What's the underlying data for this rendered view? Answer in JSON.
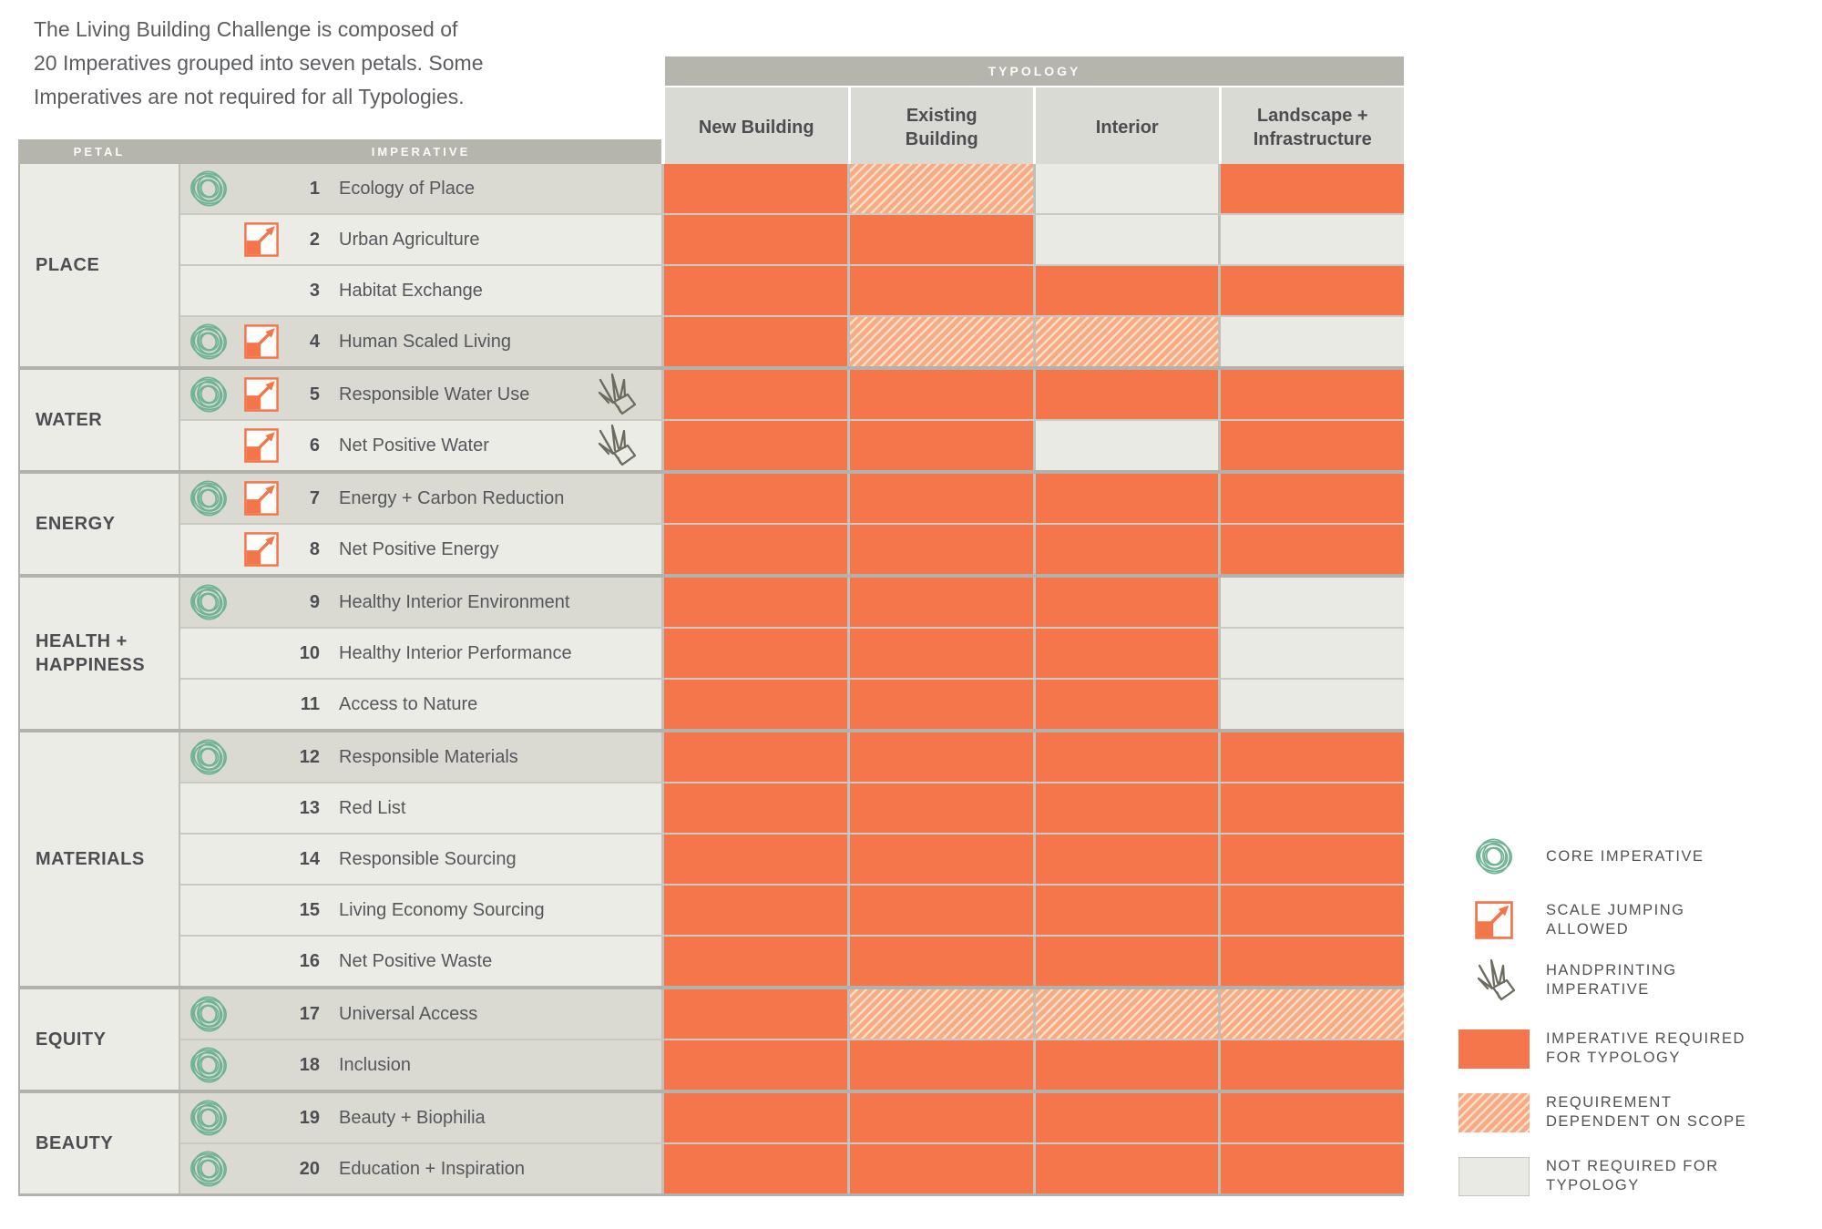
{
  "intro": "The Living Building Challenge is composed of\n20 Imperatives grouped into seven petals. Some\nImperatives are not required for all Typologies.",
  "table": {
    "petal_header": "PETAL",
    "imperative_header": "IMPERATIVE",
    "typology_header": "TYPOLOGY"
  },
  "chart_data": {
    "type": "table",
    "title": "Living Building Challenge Imperatives by Typology",
    "columns": [
      "New Building",
      "Existing\nBuilding",
      "Interior",
      "Landscape +\nInfrastructure"
    ],
    "cell_state_meanings": {
      "required": "Imperative required for Typology",
      "dependent": "Requirement dependent on scope",
      "not": "Not required for Typology"
    },
    "row_groups": [
      {
        "petal": "PLACE",
        "rows": [
          {
            "num": "1",
            "name": "Ecology of Place",
            "icons": [
              "core"
            ],
            "cells": [
              "required",
              "dependent",
              "not",
              "required"
            ]
          },
          {
            "num": "2",
            "name": "Urban Agriculture",
            "icons": [
              "scale"
            ],
            "cells": [
              "required",
              "required",
              "not",
              "not"
            ]
          },
          {
            "num": "3",
            "name": "Habitat Exchange",
            "icons": [],
            "cells": [
              "required",
              "required",
              "required",
              "required"
            ]
          },
          {
            "num": "4",
            "name": "Human Scaled Living",
            "icons": [
              "core",
              "scale"
            ],
            "cells": [
              "required",
              "dependent",
              "dependent",
              "not"
            ]
          }
        ]
      },
      {
        "petal": "WATER",
        "rows": [
          {
            "num": "5",
            "name": "Responsible Water Use",
            "icons": [
              "core",
              "scale",
              "hand"
            ],
            "cells": [
              "required",
              "required",
              "required",
              "required"
            ]
          },
          {
            "num": "6",
            "name": "Net Positive Water",
            "icons": [
              "scale",
              "hand"
            ],
            "cells": [
              "required",
              "required",
              "not",
              "required"
            ]
          }
        ]
      },
      {
        "petal": "ENERGY",
        "rows": [
          {
            "num": "7",
            "name": "Energy + Carbon Reduction",
            "icons": [
              "core",
              "scale"
            ],
            "cells": [
              "required",
              "required",
              "required",
              "required"
            ]
          },
          {
            "num": "8",
            "name": "Net Positive Energy",
            "icons": [
              "scale"
            ],
            "cells": [
              "required",
              "required",
              "required",
              "required"
            ]
          }
        ]
      },
      {
        "petal": "HEALTH +\nHAPPINESS",
        "rows": [
          {
            "num": "9",
            "name": "Healthy Interior Environment",
            "icons": [
              "core"
            ],
            "cells": [
              "required",
              "required",
              "required",
              "not"
            ]
          },
          {
            "num": "10",
            "name": "Healthy Interior Performance",
            "icons": [],
            "cells": [
              "required",
              "required",
              "required",
              "not"
            ]
          },
          {
            "num": "11",
            "name": "Access to Nature",
            "icons": [],
            "cells": [
              "required",
              "required",
              "required",
              "not"
            ]
          }
        ]
      },
      {
        "petal": "MATERIALS",
        "rows": [
          {
            "num": "12",
            "name": "Responsible Materials",
            "icons": [
              "core"
            ],
            "cells": [
              "required",
              "required",
              "required",
              "required"
            ]
          },
          {
            "num": "13",
            "name": "Red List",
            "icons": [],
            "cells": [
              "required",
              "required",
              "required",
              "required"
            ]
          },
          {
            "num": "14",
            "name": "Responsible Sourcing",
            "icons": [],
            "cells": [
              "required",
              "required",
              "required",
              "required"
            ]
          },
          {
            "num": "15",
            "name": "Living Economy Sourcing",
            "icons": [],
            "cells": [
              "required",
              "required",
              "required",
              "required"
            ]
          },
          {
            "num": "16",
            "name": "Net Positive Waste",
            "icons": [],
            "cells": [
              "required",
              "required",
              "required",
              "required"
            ]
          }
        ]
      },
      {
        "petal": "EQUITY",
        "rows": [
          {
            "num": "17",
            "name": "Universal Access",
            "icons": [
              "core"
            ],
            "cells": [
              "required",
              "dependent",
              "dependent",
              "dependent"
            ]
          },
          {
            "num": "18",
            "name": "Inclusion",
            "icons": [
              "core"
            ],
            "cells": [
              "required",
              "required",
              "required",
              "required"
            ]
          }
        ]
      },
      {
        "petal": "BEAUTY",
        "rows": [
          {
            "num": "19",
            "name": "Beauty + Biophilia",
            "icons": [
              "core"
            ],
            "cells": [
              "required",
              "required",
              "required",
              "required"
            ]
          },
          {
            "num": "20",
            "name": "Education + Inspiration",
            "icons": [
              "core"
            ],
            "cells": [
              "required",
              "required",
              "required",
              "required"
            ]
          }
        ]
      }
    ]
  },
  "legend": [
    {
      "icon": "core-imperative-icon",
      "label": "CORE IMPERATIVE"
    },
    {
      "icon": "scale-jumping-icon",
      "label": "SCALE JUMPING\nALLOWED"
    },
    {
      "icon": "handprinting-icon",
      "label": "HANDPRINTING\nIMPERATIVE"
    },
    {
      "swatch": "required",
      "label": "IMPERATIVE REQUIRED\nFOR TYPOLOGY"
    },
    {
      "swatch": "dependent",
      "label": "REQUIREMENT\nDEPENDENT ON SCOPE"
    },
    {
      "swatch": "not",
      "label": "NOT REQUIRED FOR\nTYPOLOGY"
    }
  ],
  "colors": {
    "required": "#f4764a",
    "dependent_base": "#f8ab83",
    "dependent_stripe": "#fcddca",
    "not_required": "#eaeae5",
    "core_green": "#6fb394",
    "scale_orange": "#f3764b",
    "hand_gray": "#6c6b60"
  }
}
